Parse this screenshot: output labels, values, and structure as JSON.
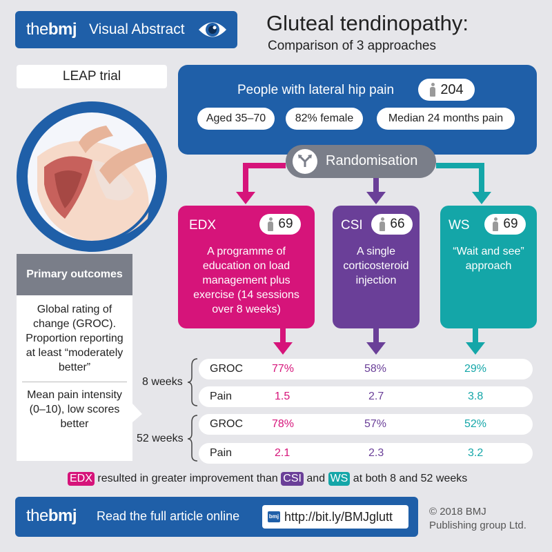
{
  "header": {
    "logo_prefix": "the",
    "logo_brand": "bmj",
    "label": "Visual Abstract",
    "icon": "eye-icon",
    "title": "Gluteal tendinopathy:",
    "subtitle": "Comparison of 3 approaches"
  },
  "trial": {
    "name": "LEAP trial"
  },
  "population": {
    "title": "People with lateral hip pain",
    "count": "204",
    "tags": [
      "Aged 35–70",
      "82% female",
      "Median 24 months pain"
    ]
  },
  "randomisation": {
    "label": "Randomisation",
    "icon": "split-arrows-icon"
  },
  "arms": [
    {
      "name": "EDX",
      "count": "69",
      "description": "A programme of education on load management plus exercise (14 sessions over 8 weeks)",
      "color": "#d6147a"
    },
    {
      "name": "CSI",
      "count": "66",
      "description": "A single corticosteroid injection",
      "color": "#6a3f98"
    },
    {
      "name": "WS",
      "count": "69",
      "description": "“Wait and see” approach",
      "color": "#14a6a8"
    }
  ],
  "primary_outcomes": {
    "heading": "Primary outcomes",
    "outcome_1": "Global rating of change (GROC). Proportion reporting at least “moderately better”",
    "outcome_2": "Mean pain intensity (0–10), low scores better"
  },
  "results": {
    "week8": {
      "label": "8 weeks",
      "groc": {
        "label": "GROC",
        "edx": "77%",
        "csi": "58%",
        "ws": "29%"
      },
      "pain": {
        "label": "Pain",
        "edx": "1.5",
        "csi": "2.7",
        "ws": "3.8"
      }
    },
    "week52": {
      "label": "52 weeks",
      "groc": {
        "label": "GROC",
        "edx": "78%",
        "csi": "57%",
        "ws": "52%"
      },
      "pain": {
        "label": "Pain",
        "edx": "2.1",
        "csi": "2.3",
        "ws": "3.2"
      }
    }
  },
  "conclusion": {
    "edx": "EDX",
    "text_1": "resulted in greater improvement than",
    "csi": "CSI",
    "text_2": "and",
    "ws": "WS",
    "text_3": "at both 8 and 52 weeks"
  },
  "footer": {
    "logo_prefix": "the",
    "logo_brand": "bmj",
    "text": "Read the full article online",
    "url_icon_text": "bmj",
    "url": "http://bit.ly/BMJglutt",
    "copyright_1": "© 2018 BMJ",
    "copyright_2": "Publishing group Ltd."
  },
  "colors": {
    "brand_blue": "#1f5fa8",
    "grey": "#7a7e89",
    "edx": "#d6147a",
    "csi": "#6a3f98",
    "ws": "#14a6a8"
  }
}
